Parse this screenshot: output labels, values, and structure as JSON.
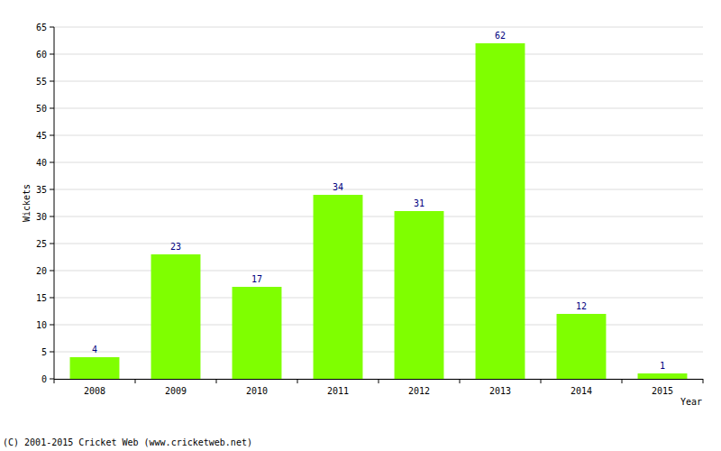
{
  "chart_data": {
    "type": "bar",
    "x_label": "Year",
    "y_label": "Wickets",
    "annotation": "(C) 2001-2015 Cricket Web (www.cricketweb.net)",
    "categories": [
      "2008",
      "2009",
      "2010",
      "2011",
      "2012",
      "2013",
      "2014",
      "2015"
    ],
    "values": [
      4,
      23,
      17,
      34,
      31,
      62,
      12,
      1
    ],
    "color": "#7fff00",
    "ylim": [
      0,
      65
    ],
    "yticks": [
      0,
      5,
      10,
      15,
      20,
      25,
      30,
      35,
      40,
      45,
      50,
      55,
      60,
      65
    ],
    "grid": true,
    "data_labels": true
  }
}
